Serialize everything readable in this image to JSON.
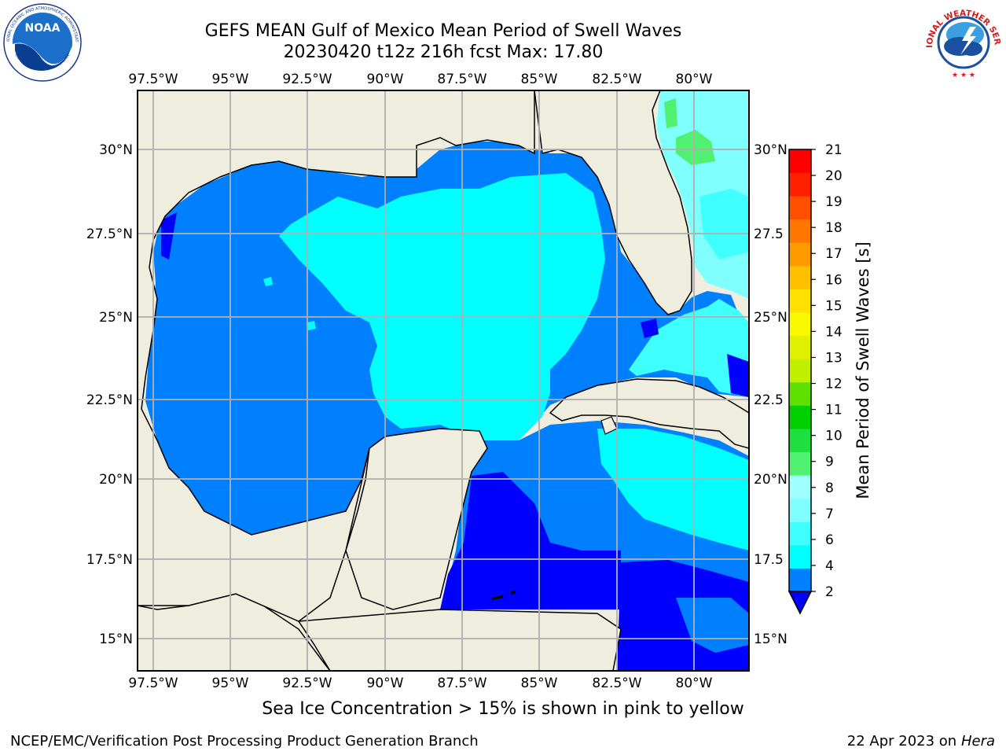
{
  "header": {
    "title_line1": "GEFS MEAN Gulf of Mexico Mean Period of Swell Waves",
    "title_line2": "20230420 t12z 216h fcst   Max: 17.80"
  },
  "logos": {
    "noaa_text": "NOAA",
    "noaa_ring": "NATIONAL OCEANIC AND ATMOSPHERIC ADMINISTRATION",
    "noaa_ring_bottom": "U.S. DEPARTMENT OF COMMERCE",
    "nws_ring": "NATIONAL WEATHER SERVICE"
  },
  "map": {
    "lon_labels": [
      "97.5°W",
      "95°W",
      "92.5°W",
      "90°W",
      "87.5°W",
      "85°W",
      "82.5°W",
      "80°W"
    ],
    "lat_labels": [
      "30°N",
      "27.5°N",
      "25°N",
      "22.5°N",
      "20°N",
      "17.5°N",
      "15°N"
    ],
    "right_lat_labels": [
      "30°N",
      "27.5",
      "25°N",
      "22.5",
      "20°N",
      "17.5",
      "15°N"
    ],
    "extent": {
      "lon": [
        -98,
        -78.3
      ],
      "lat": [
        14,
        31.8
      ]
    }
  },
  "colorbar": {
    "label": "Mean Period of Swell Waves [s]",
    "ticks": [
      "2",
      "4",
      "6",
      "7",
      "8",
      "9",
      "10",
      "11",
      "12",
      "13",
      "14",
      "15",
      "16",
      "17",
      "18",
      "19",
      "20",
      "21"
    ],
    "colors": [
      "#0080ff",
      "#00ffff",
      "#40ffff",
      "#80ffff",
      "#a0ffff",
      "#50f070",
      "#20e040",
      "#00d000",
      "#60e000",
      "#c0f000",
      "#e0f000",
      "#f8f800",
      "#ffe000",
      "#ffc000",
      "#ff9900",
      "#ff7700",
      "#ff5000",
      "#ff2000",
      "#ff0000"
    ],
    "under_color": "#0000ff"
  },
  "footer": {
    "note": "Sea Ice Concentration > 15% is shown in pink to yellow",
    "credit_left": "NCEP/EMC/Verification Post Processing Product Generation Branch",
    "date": "22 Apr 2023 on",
    "machine": "Hera"
  }
}
